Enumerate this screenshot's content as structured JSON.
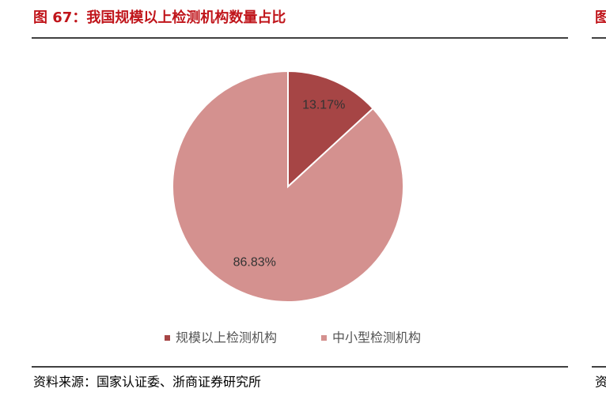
{
  "chart_data": {
    "type": "pie",
    "title": "图 67：我国规模以上检测机构数量占比",
    "categories": [
      "规模以上检测机构",
      "中小型检测机构"
    ],
    "values": [
      13.17,
      86.83
    ],
    "value_labels": [
      "13.17%",
      "86.83%"
    ],
    "colors": [
      "#a64545",
      "#d4918f"
    ],
    "source": "资料来源：国家认证委、浙商证券研究所"
  },
  "clipped_title": "图",
  "clipped_source": "资"
}
